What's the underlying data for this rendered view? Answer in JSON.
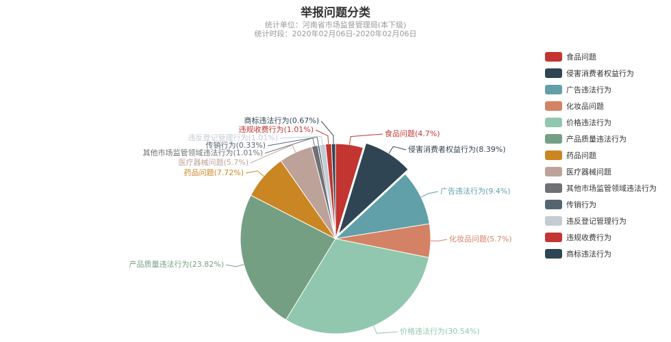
{
  "title": "举报问题分类",
  "subtitle": {
    "line1": "统计单位：河南省市场监督管理局(本下级)",
    "line2": "统计时段：2020年02月06日-2020年02月06日"
  },
  "chart_data": {
    "type": "pie",
    "title": "举报问题分类",
    "legend_position": "right",
    "slices": [
      {
        "name": "食品问题",
        "value": 4.7,
        "label": "食品问题(4.7%)",
        "color": "#c23531"
      },
      {
        "name": "侵害消费者权益行为",
        "value": 8.39,
        "label": "侵害消费者权益行为(8.39%)",
        "color": "#2f4554"
      },
      {
        "name": "广告违法行为",
        "value": 9.4,
        "label": "广告违法行为(9.4%)",
        "color": "#61a0a8"
      },
      {
        "name": "化妆品问题",
        "value": 5.7,
        "label": "化妆品问题(5.7%)",
        "color": "#d48265"
      },
      {
        "name": "价格违法行为",
        "value": 30.54,
        "label": "价格违法行为(30.54%)",
        "color": "#91c7ae"
      },
      {
        "name": "产品质量违法行为",
        "value": 23.82,
        "label": "产品质量违法行为(23.82%)",
        "color": "#749f83"
      },
      {
        "name": "药品问题",
        "value": 7.72,
        "label": "药品问题(7.72%)",
        "color": "#ca8622"
      },
      {
        "name": "医疗器械问题",
        "value": 5.7,
        "label": "医疗器械问题(5.7%)",
        "color": "#bda29a"
      },
      {
        "name": "其他市场监管领域违法行为",
        "value": 1.01,
        "label": "其他市场监管领域违法行为(1.01%)",
        "color": "#6e7074"
      },
      {
        "name": "传销行为",
        "value": 0.33,
        "label": "传销行为(0.33%)",
        "color": "#546570"
      },
      {
        "name": "违反登记管理行为",
        "value": 1.01,
        "label": "违反登记管理行为(1.01%)",
        "color": "#c4ccd3"
      },
      {
        "name": "违规收费行为",
        "value": 1.01,
        "label": "违规收费行为(1.01%)",
        "color": "#c23531"
      },
      {
        "name": "商标违法行为",
        "value": 0.67,
        "label": "商标违法行为(0.67%)",
        "color": "#2f4554"
      }
    ]
  }
}
